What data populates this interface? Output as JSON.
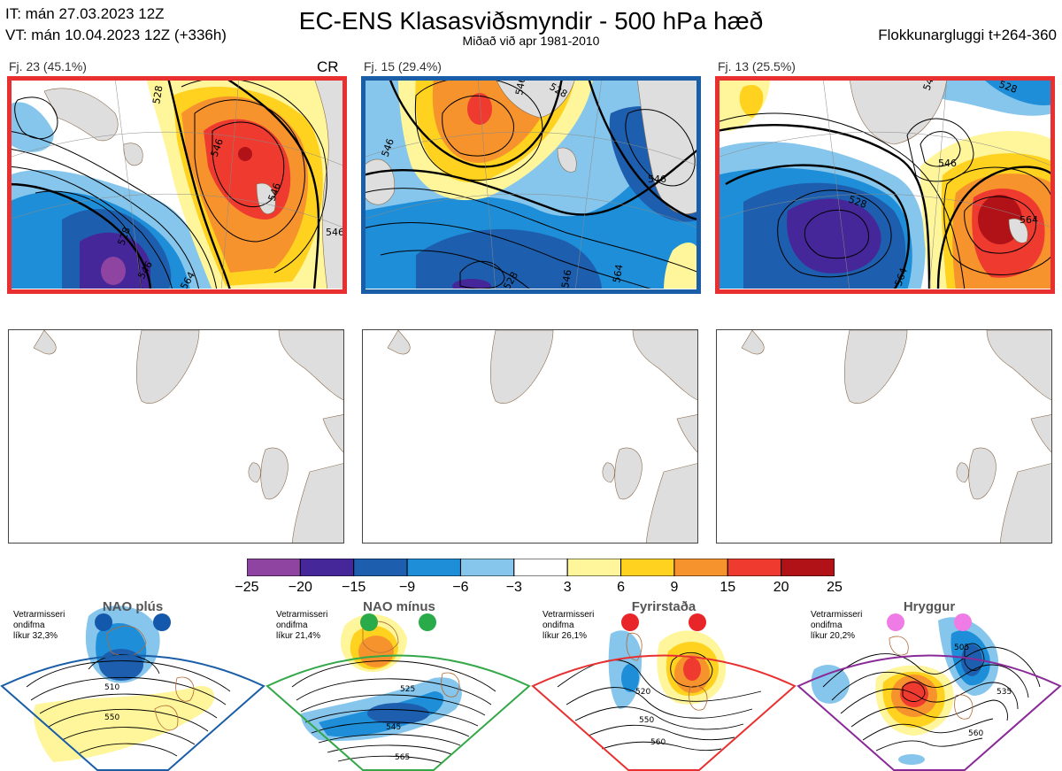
{
  "header": {
    "init_time": "IT: mán 27.03.2023 12Z",
    "valid_time": "VT: mán 10.04.2023 12Z  (+336h)",
    "title": "EC-ENS Klasasviðsmyndir - 500 hPa hæð",
    "subtitle": "Miðað við apr 1981-2010",
    "window": "Flokkunargluggi t+264-360"
  },
  "colors": {
    "frame_red": "#e83030",
    "frame_blue": "#1a5ea8",
    "frame_green": "#34a849",
    "frame_purple": "#8a2a98",
    "land": "#dedede"
  },
  "clusters": [
    {
      "label": "Fj. 23 (45.1%)",
      "tag": "CR",
      "frame_color": "#e83030",
      "contour_labels": [
        "528",
        "546",
        "528",
        "546",
        "546",
        "564",
        "546"
      ]
    },
    {
      "label": "Fj. 15 (29.4%)",
      "tag": "",
      "frame_color": "#1a5ea8",
      "contour_labels": [
        "546",
        "528",
        "546",
        "546",
        "546",
        "528",
        "564"
      ]
    },
    {
      "label": "Fj. 13 (25.5%)",
      "tag": "",
      "frame_color": "#e83030",
      "contour_labels": [
        "546",
        "528",
        "546",
        "528",
        "564",
        "564"
      ]
    }
  ],
  "chart_data": {
    "type": "heatmap",
    "title": "EC-ENS Klasasviðsmyndir - 500 hPa hæð",
    "colorbar": {
      "ticks": [
        "−25",
        "−20",
        "−15",
        "−9",
        "−6",
        "−3",
        "3",
        "6",
        "9",
        "15",
        "20",
        "25"
      ],
      "colors": [
        "#8e44a0",
        "#46279a",
        "#1d5fae",
        "#1e8ed8",
        "#86c6ec",
        "#ffffff",
        "#fff59a",
        "#ffd21f",
        "#f7932d",
        "#ee3a2f",
        "#b01218"
      ]
    },
    "regimes": [
      {
        "name": "NAO plús",
        "note": [
          "Vetrarmisseri",
          "ondifma",
          "líkur 32,3%"
        ],
        "frame_color": "#1a5ea8",
        "dot_color": "#1458ac",
        "contour_labels": [
          "510",
          "550"
        ]
      },
      {
        "name": "NAO mínus",
        "note": [
          "Vetrarmisseri",
          "ondifma",
          "líkur 21,4%"
        ],
        "frame_color": "#34a849",
        "dot_color": "#2aab4a",
        "contour_labels": [
          "525",
          "545",
          "565"
        ]
      },
      {
        "name": "Fyrirstaða",
        "note": [
          "Vetrarmisseri",
          "ondifma",
          "líkur 26,1%"
        ],
        "frame_color": "#e83030",
        "dot_color": "#e8262a",
        "contour_labels": [
          "520",
          "550",
          "560"
        ]
      },
      {
        "name": "Hryggur",
        "note": [
          "Vetrarmisseri",
          "ondifma",
          "líkur 20,2%"
        ],
        "frame_color": "#8a2a98",
        "dot_color": "#ef7ce6",
        "contour_labels": [
          "505",
          "535",
          "560"
        ]
      }
    ]
  }
}
